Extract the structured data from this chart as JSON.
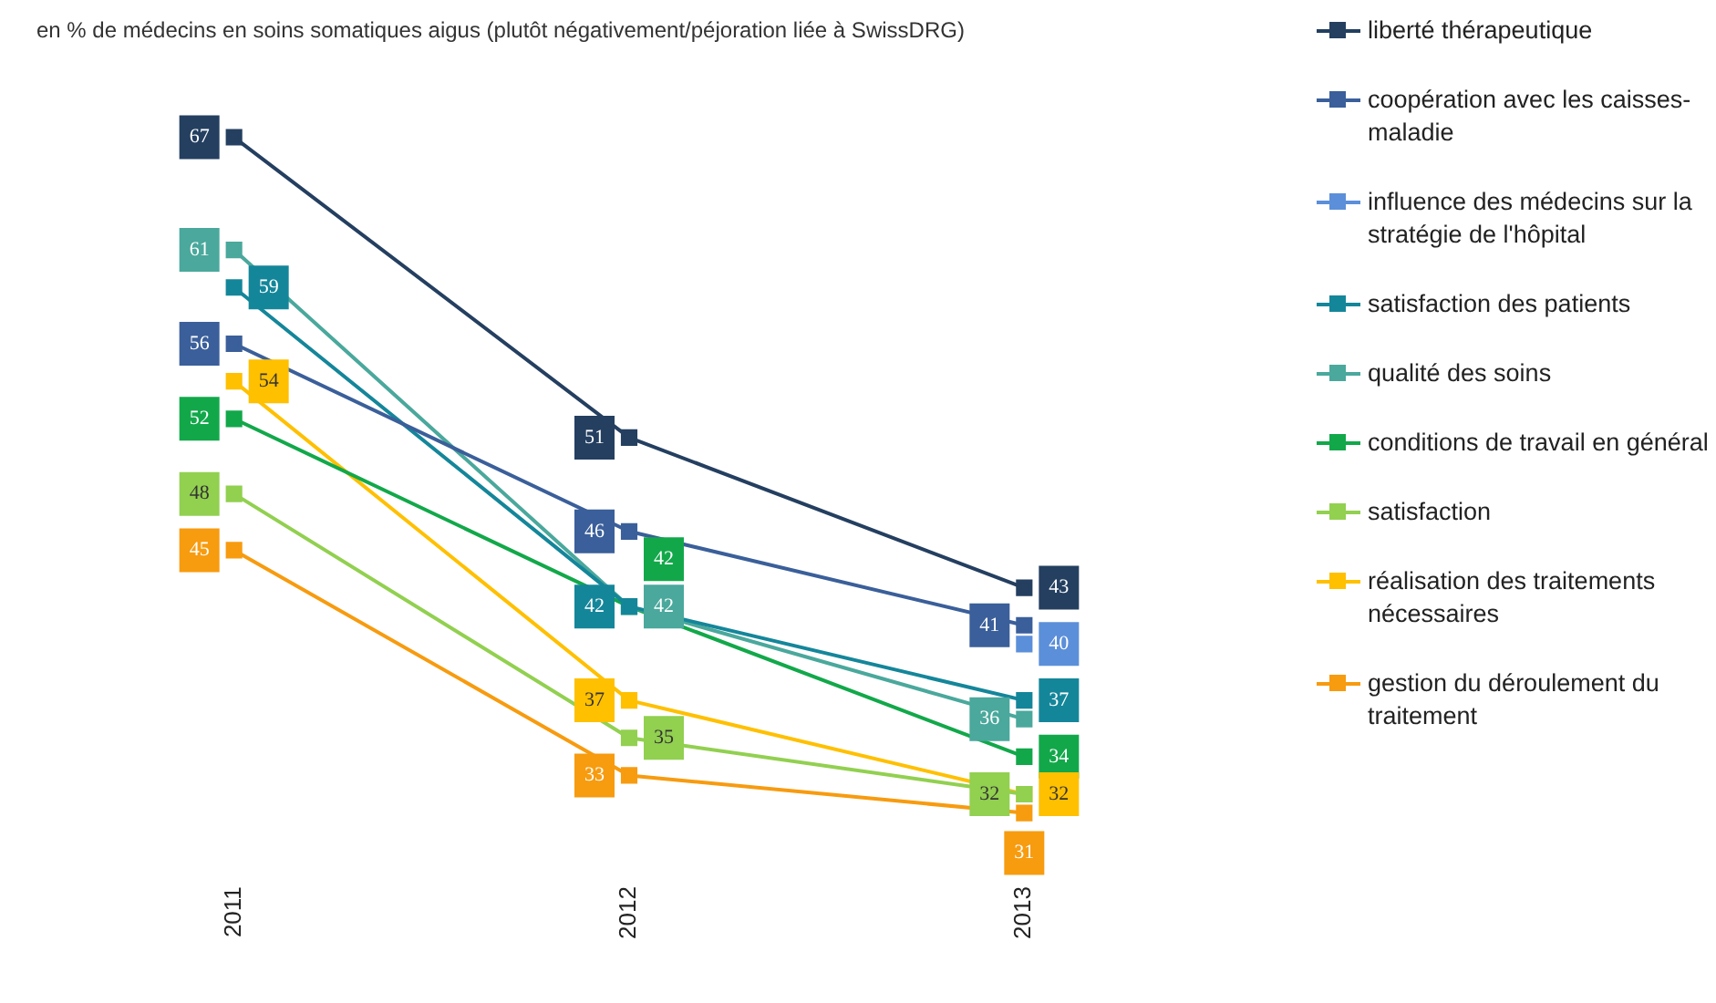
{
  "chart_data": {
    "type": "line",
    "title": "en % de médecins en soins somatiques aigus (plutôt négativement/péjoration liée à SwissDRG)",
    "categories": [
      "2011",
      "2012",
      "2013"
    ],
    "series": [
      {
        "name": "liberté thérapeutique",
        "color": "#243f60",
        "values": [
          67,
          51,
          43
        ]
      },
      {
        "name": "coopération avec les caisses-maladie",
        "color": "#3a5f9a",
        "values": [
          56,
          46,
          41
        ]
      },
      {
        "name": "influence des médecins sur la stratégie de l'hôpital",
        "color": "#5b8fd9",
        "values": [
          null,
          null,
          40
        ]
      },
      {
        "name": "satisfaction des patients",
        "color": "#14869a",
        "values": [
          59,
          42,
          37
        ]
      },
      {
        "name": "qualité des soins",
        "color": "#4aa89c",
        "values": [
          61,
          42,
          36
        ]
      },
      {
        "name": "conditions de travail en général",
        "color": "#12a84a",
        "values": [
          52,
          42,
          34
        ]
      },
      {
        "name": "satisfaction",
        "color": "#92d050",
        "values": [
          48,
          35,
          32
        ]
      },
      {
        "name": "réalisation des traitements nécessaires",
        "color": "#ffc000",
        "values": [
          54,
          37,
          32
        ]
      },
      {
        "name": "gestion du déroulement du traitement",
        "color": "#f79b0f",
        "values": [
          45,
          33,
          31
        ]
      }
    ],
    "data_labels": true,
    "legend": "right",
    "marker": "square",
    "line_style": "solid",
    "grid": false
  }
}
